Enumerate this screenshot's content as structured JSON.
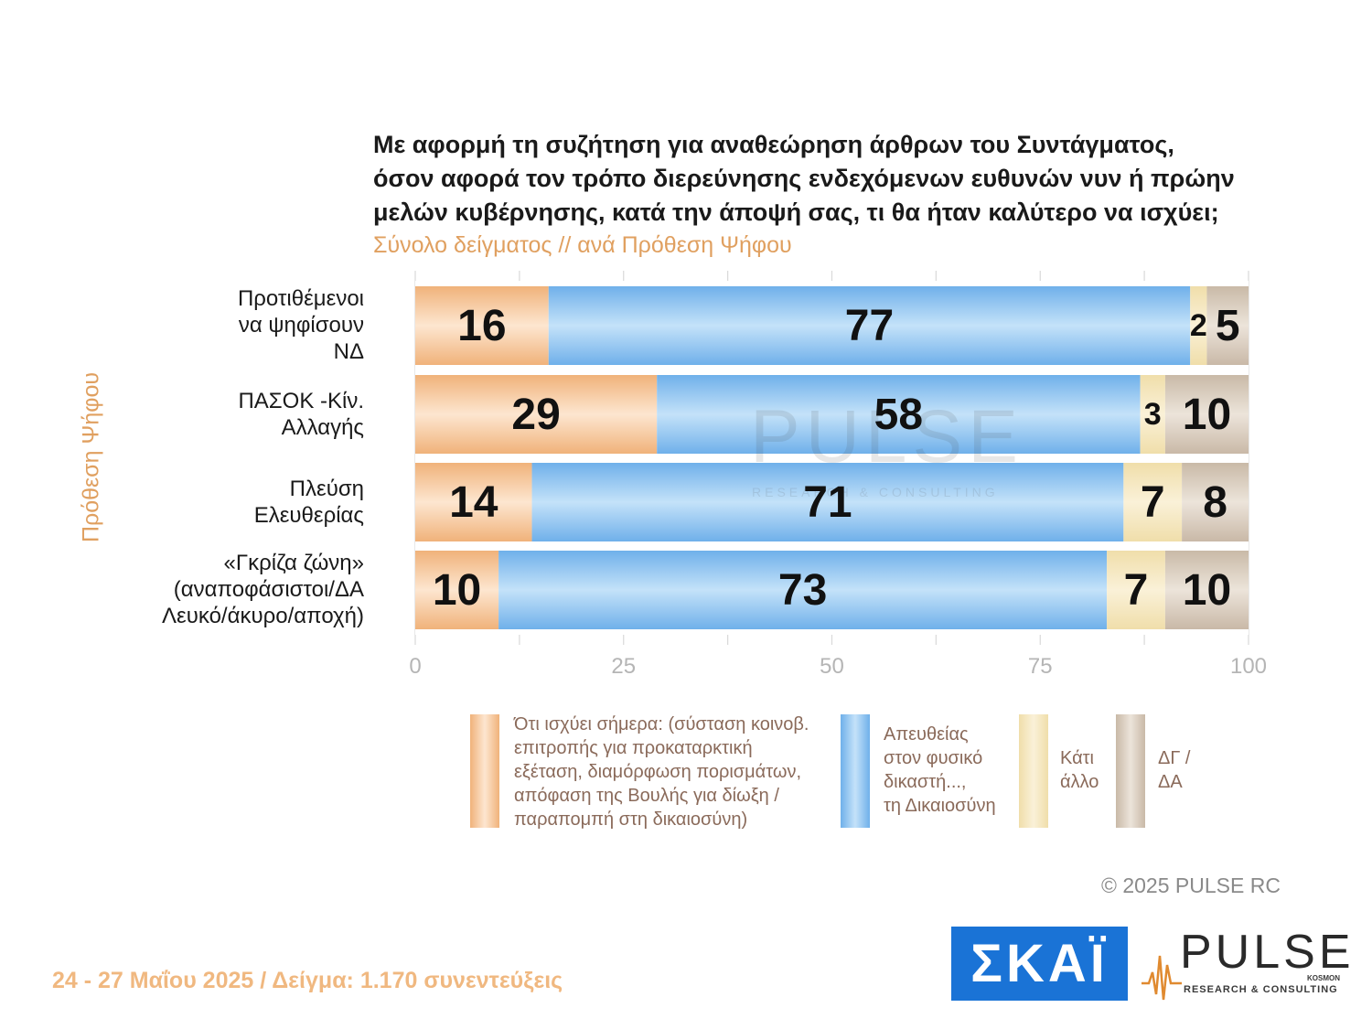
{
  "title_lines": [
    "Με αφορμή τη συζήτηση για αναθεώρηση άρθρων του Συντάγματος,",
    "όσον αφορά τον τρόπο διερεύνησης ενδεχόμενων ευθυνών νυν ή πρώην",
    "μελών κυβέρνησης, κατά την άποψή σας, τι θα ήταν καλύτερο να ισχύει;"
  ],
  "subtitle": "Σύνολο δείγματος // ανά Πρόθεση Ψήφου",
  "axis_title": "Πρόθεση Ψήφου",
  "category_labels": [
    [
      "Προτιθέμενοι",
      "να ψηφίσουν",
      "ΝΔ"
    ],
    [
      "ΠΑΣΟΚ -Κίν.",
      "Αλλαγής"
    ],
    [
      "Πλεύση",
      "Ελευθερίας"
    ],
    [
      "«Γκρίζα ζώνη»",
      "(αναποφάσιστοι/ΔΑ",
      "Λευκό/άκυρο/αποχή)"
    ]
  ],
  "chart_data": {
    "type": "bar",
    "orientation": "horizontal",
    "stacked": true,
    "title": "Με αφορμή τη συζήτηση για αναθεώρηση άρθρων του Συντάγματος, όσον αφορά τον τρόπο διερεύνησης ενδεχόμενων ευθυνών νυν ή πρώην μελών κυβέρνησης, κατά την άποψή σας, τι θα ήταν καλύτερο να ισχύει;",
    "subtitle": "Σύνολο δείγματος // ανά Πρόθεση Ψήφου",
    "ylabel": "Πρόθεση Ψήφου",
    "categories": [
      "Προτιθέμενοι να ψηφίσουν ΝΔ",
      "ΠΑΣΟΚ -Κίν. Αλλαγής",
      "Πλεύση Ελευθερίας",
      "«Γκρίζα ζώνη» (αναποφάσιστοι/ΔΑ Λευκό/άκυρο/αποχή)"
    ],
    "series": [
      {
        "name": "Ότι ισχύει σήμερα",
        "color": "#f0b27a",
        "values": [
          16,
          29,
          14,
          10
        ]
      },
      {
        "name": "Απευθείας στον φυσικό δικαστή..., τη Δικαιοσύνη",
        "color": "#7cb9ec",
        "values": [
          77,
          58,
          71,
          73
        ]
      },
      {
        "name": "Κάτι άλλο",
        "color": "#f3e2b0",
        "values": [
          2,
          3,
          7,
          7
        ]
      },
      {
        "name": "ΔΓ / ΔΑ",
        "color": "#d2c3b3",
        "values": [
          5,
          10,
          8,
          10
        ]
      }
    ],
    "xlim": [
      0,
      100
    ],
    "xticks": [
      0,
      25,
      50,
      75,
      100
    ],
    "xtick_labels": [
      "0",
      "25",
      "50",
      "75",
      "100"
    ],
    "grid": true
  },
  "legend": [
    {
      "color_top": "#fbe3cc",
      "color_bottom": "#f0b27a",
      "lines": [
        "Ότι ισχύει σήμερα: (σύσταση κοινοβ.",
        "επιτροπής για προκαταρκτική",
        "εξέταση, διαμόρφωση πορισμάτων,",
        "απόφαση της Βουλής για δίωξη /",
        "παραπομπή στη δικαιοσύνη)"
      ]
    },
    {
      "color_top": "#bfe0f8",
      "color_bottom": "#6aaee8",
      "lines": [
        "Απευθείας",
        "στον φυσικό",
        "δικαστή...,",
        "τη Δικαιοσύνη"
      ]
    },
    {
      "color_top": "#f8eccc",
      "color_bottom": "#f0deaa",
      "lines": [
        "Κάτι",
        "άλλο"
      ]
    },
    {
      "color_top": "#e6dcd0",
      "color_bottom": "#c6b5a3",
      "lines": [
        "ΔΓ /",
        "ΔΑ"
      ]
    }
  ],
  "watermark": {
    "word": "PULSE",
    "sub": "RESEARCH & CONSULTING"
  },
  "copyright": "©  2025  PULSE RC",
  "footer": "24 - 27 Μαΐου 2025  /  Δείγμα:  1.170 συνεντεύξεις",
  "logos": {
    "skai": "ΣΚΑΪ",
    "pulse": "PULSE",
    "pulse_sub": "RESEARCH & CONSULTING",
    "pulse_kosmon": "KOSMON"
  }
}
